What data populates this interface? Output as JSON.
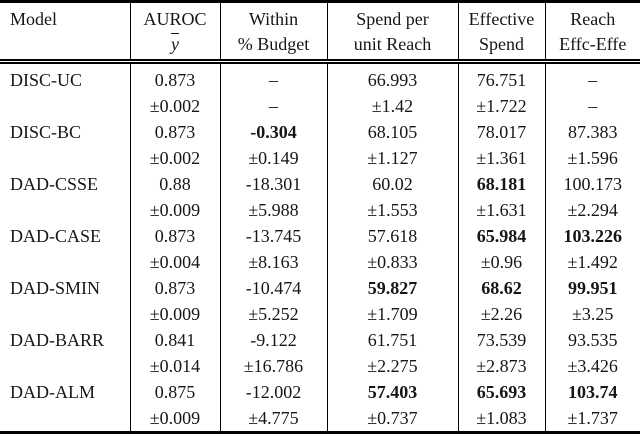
{
  "table": {
    "header": {
      "model": "Model",
      "cols": [
        {
          "l1": "AUROC",
          "l2": "y",
          "l2_math_overline": true
        },
        {
          "l1": "Within",
          "l2": "% Budget"
        },
        {
          "l1": "Spend per",
          "l2": "unit Reach"
        },
        {
          "l1": "Effective",
          "l2": "Spend"
        },
        {
          "l1": "Reach",
          "l2": "Effc-Effe"
        }
      ]
    },
    "rows": [
      {
        "model": "DISC-UC",
        "values": [
          "0.873",
          "–",
          "66.993",
          "76.751",
          "–"
        ],
        "errors": [
          "±0.002",
          "–",
          "±1.42",
          "±1.722",
          "–"
        ],
        "bold": [
          false,
          false,
          false,
          false,
          false
        ]
      },
      {
        "model": "DISC-BC",
        "values": [
          "0.873",
          "-0.304",
          "68.105",
          "78.017",
          "87.383"
        ],
        "errors": [
          "±0.002",
          "±0.149",
          "±1.127",
          "±1.361",
          "±1.596"
        ],
        "bold": [
          false,
          true,
          false,
          false,
          false
        ]
      },
      {
        "model": "DAD-CSSE",
        "values": [
          "0.88",
          "-18.301",
          "60.02",
          "68.181",
          "100.173"
        ],
        "errors": [
          "±0.009",
          "±5.988",
          "±1.553",
          "±1.631",
          "±2.294"
        ],
        "bold": [
          false,
          false,
          false,
          true,
          false
        ]
      },
      {
        "model": "DAD-CASE",
        "values": [
          "0.873",
          "-13.745",
          "57.618",
          "65.984",
          "103.226"
        ],
        "errors": [
          "±0.004",
          "±8.163",
          "±0.833",
          "±0.96",
          "±1.492"
        ],
        "bold": [
          false,
          false,
          false,
          true,
          true
        ]
      },
      {
        "model": "DAD-SMIN",
        "values": [
          "0.873",
          "-10.474",
          "59.827",
          "68.62",
          "99.951"
        ],
        "errors": [
          "±0.009",
          "±5.252",
          "±1.709",
          "±2.26",
          "±3.25"
        ],
        "bold": [
          false,
          false,
          true,
          true,
          true
        ]
      },
      {
        "model": "DAD-BARR",
        "values": [
          "0.841",
          "-9.122",
          "61.751",
          "73.539",
          "93.535"
        ],
        "errors": [
          "±0.014",
          "±16.786",
          "±2.275",
          "±2.873",
          "±3.426"
        ],
        "bold": [
          false,
          false,
          false,
          false,
          false
        ]
      },
      {
        "model": "DAD-ALM",
        "values": [
          "0.875",
          "-12.002",
          "57.403",
          "65.693",
          "103.74"
        ],
        "errors": [
          "±0.009",
          "±4.775",
          "±0.737",
          "±1.083",
          "±1.737"
        ],
        "bold": [
          false,
          false,
          true,
          true,
          true
        ]
      }
    ]
  },
  "colors": {
    "text": "#161616",
    "rule": "#000000",
    "background": "#ffffff"
  }
}
